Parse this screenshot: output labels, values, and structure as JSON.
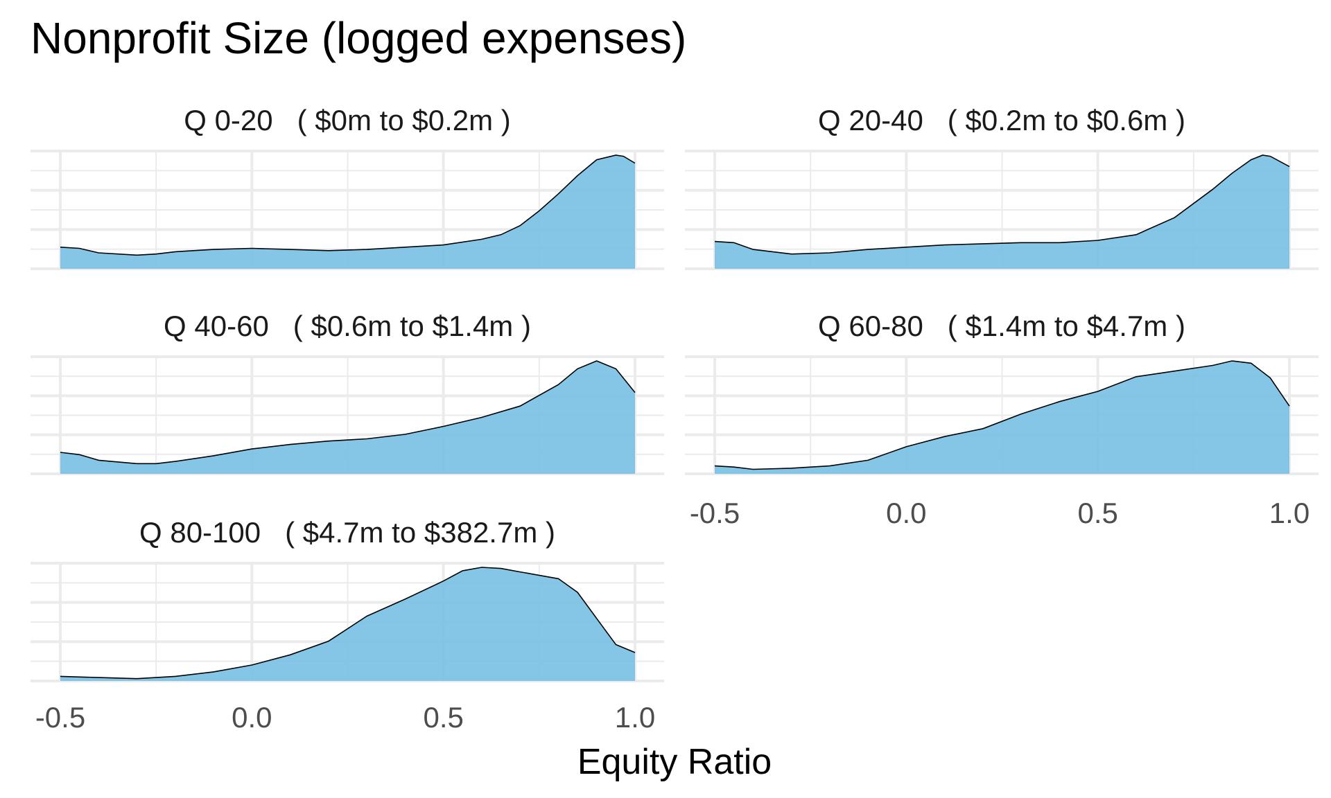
{
  "title": "Nonprofit Size (logged expenses)",
  "chart_data": {
    "type": "area",
    "title": "Nonprofit Size (logged expenses)",
    "xlabel": "Equity Ratio",
    "ylabel": "",
    "xlim": [
      -0.55,
      1.05
    ],
    "x_ticks": [
      -0.5,
      0.0,
      0.5,
      1.0
    ],
    "x_tick_labels": [
      "-0.5",
      "0.0",
      "0.5",
      "1.0"
    ],
    "y_ticks_shown": false,
    "grid": true,
    "fill_color": "#74bde3",
    "line_color": "#000000",
    "panels": [
      {
        "label": "Q 0-20   ( $0m to $0.2m )",
        "x": [
          -0.5,
          -0.45,
          -0.4,
          -0.3,
          -0.25,
          -0.2,
          -0.1,
          0.0,
          0.1,
          0.2,
          0.3,
          0.4,
          0.5,
          0.6,
          0.65,
          0.7,
          0.75,
          0.8,
          0.85,
          0.9,
          0.95,
          0.97,
          1.0
        ],
        "y": [
          0.19,
          0.18,
          0.14,
          0.12,
          0.13,
          0.15,
          0.17,
          0.18,
          0.17,
          0.16,
          0.17,
          0.19,
          0.21,
          0.26,
          0.3,
          0.38,
          0.51,
          0.66,
          0.82,
          0.96,
          1.0,
          0.99,
          0.93
        ]
      },
      {
        "label": "Q 20-40   ( $0.2m to $0.6m )",
        "x": [
          -0.5,
          -0.45,
          -0.4,
          -0.3,
          -0.2,
          -0.1,
          0.0,
          0.1,
          0.2,
          0.3,
          0.4,
          0.5,
          0.6,
          0.7,
          0.8,
          0.85,
          0.9,
          0.93,
          0.95,
          1.0
        ],
        "y": [
          0.24,
          0.23,
          0.17,
          0.13,
          0.14,
          0.17,
          0.19,
          0.21,
          0.22,
          0.23,
          0.23,
          0.25,
          0.3,
          0.45,
          0.7,
          0.84,
          0.96,
          1.0,
          0.99,
          0.9
        ]
      },
      {
        "label": "Q 40-60   ( $0.6m to $1.4m )",
        "x": [
          -0.5,
          -0.45,
          -0.4,
          -0.3,
          -0.25,
          -0.2,
          -0.1,
          0.0,
          0.1,
          0.2,
          0.3,
          0.4,
          0.5,
          0.6,
          0.7,
          0.8,
          0.85,
          0.9,
          0.95,
          1.0
        ],
        "y": [
          0.19,
          0.17,
          0.12,
          0.09,
          0.09,
          0.11,
          0.16,
          0.22,
          0.26,
          0.29,
          0.31,
          0.35,
          0.42,
          0.5,
          0.6,
          0.79,
          0.93,
          1.0,
          0.93,
          0.72
        ]
      },
      {
        "label": "Q 60-80   ( $1.4m to $4.7m )",
        "x": [
          -0.5,
          -0.45,
          -0.4,
          -0.3,
          -0.2,
          -0.1,
          0.0,
          0.1,
          0.2,
          0.3,
          0.4,
          0.5,
          0.6,
          0.7,
          0.8,
          0.85,
          0.9,
          0.95,
          1.0
        ],
        "y": [
          0.07,
          0.06,
          0.04,
          0.05,
          0.07,
          0.12,
          0.24,
          0.33,
          0.4,
          0.53,
          0.64,
          0.73,
          0.86,
          0.91,
          0.96,
          1.0,
          0.98,
          0.85,
          0.6
        ]
      },
      {
        "label": "Q 80-100   ( $4.7m to $382.7m )",
        "x": [
          -0.5,
          -0.4,
          -0.3,
          -0.2,
          -0.1,
          0.0,
          0.1,
          0.2,
          0.3,
          0.4,
          0.5,
          0.55,
          0.6,
          0.65,
          0.7,
          0.8,
          0.85,
          0.9,
          0.95,
          1.0
        ],
        "y": [
          0.04,
          0.03,
          0.02,
          0.04,
          0.08,
          0.14,
          0.23,
          0.35,
          0.57,
          0.72,
          0.88,
          0.97,
          1.0,
          0.99,
          0.96,
          0.9,
          0.78,
          0.55,
          0.32,
          0.25
        ]
      }
    ]
  }
}
